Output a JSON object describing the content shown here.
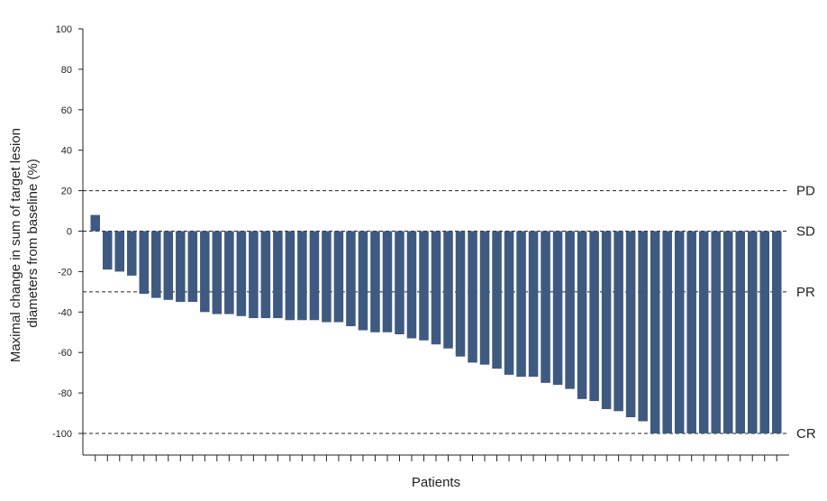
{
  "chart_data": {
    "type": "bar",
    "title": "",
    "xlabel": "Patients",
    "ylabel_lines": [
      "Maximal change in sum of target lesion",
      "diameters from baseline (%)"
    ],
    "ylim": [
      -110,
      100
    ],
    "yticks": [
      "100",
      "80",
      "60",
      "40",
      "20",
      "0",
      "-20",
      "-40",
      "-60",
      "-80",
      "-100"
    ],
    "ytick_values": [
      100,
      80,
      60,
      40,
      20,
      0,
      -20,
      -40,
      -60,
      -80,
      -100
    ],
    "grid": false,
    "bar_color": "#3f5a80",
    "reference_lines": [
      {
        "label": "PD",
        "value": 20
      },
      {
        "label": "SD",
        "value": 0
      },
      {
        "label": "PR",
        "value": -30
      },
      {
        "label": "CR",
        "value": -100
      }
    ],
    "values": [
      8,
      -19,
      -20,
      -22,
      -31,
      -33,
      -34,
      -35,
      -35,
      -40,
      -41,
      -41,
      -42,
      -43,
      -43,
      -43,
      -44,
      -44,
      -44,
      -45,
      -45,
      -47,
      -49,
      -50,
      -50,
      -51,
      -53,
      -54,
      -56,
      -58,
      -62,
      -65,
      -66,
      -68,
      -71,
      -72,
      -72,
      -75,
      -76,
      -78,
      -83,
      -84,
      -88,
      -89,
      -92,
      -94,
      -100,
      -100,
      -100,
      -100,
      -100,
      -100,
      -100,
      -100,
      -100,
      -100,
      -100
    ]
  }
}
